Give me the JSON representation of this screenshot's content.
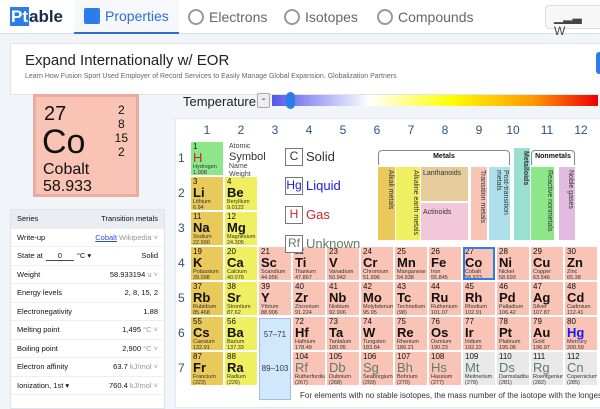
{
  "nav": {
    "logo_p": "Pt",
    "logo_rest": "able",
    "tabs": [
      {
        "label": "Properties",
        "icon": "list-icon",
        "active": true
      },
      {
        "label": "Electrons",
        "icon": "atom-icon"
      },
      {
        "label": "Isotopes",
        "icon": "isotopes-icon"
      },
      {
        "label": "Compounds",
        "icon": "compounds-icon"
      }
    ],
    "right_button": "W"
  },
  "ad": {
    "title": "Expand Internationally w/ EOR",
    "subtitle": "Learn How Fusion Sport Used Employer of Record Services to Easily Manage Global Expansion. Globalization Partners"
  },
  "selected": {
    "number": "27",
    "symbol": "Co",
    "name": "Cobalt",
    "weight": "58.933",
    "shells": [
      "2",
      "8",
      "15",
      "2"
    ]
  },
  "temperature": {
    "label": "Temperature",
    "minus": "-"
  },
  "groups": [
    "1",
    "2",
    "3",
    "4",
    "5",
    "6",
    "7",
    "8",
    "9",
    "10",
    "11",
    "12"
  ],
  "periods": [
    "1",
    "2",
    "3",
    "4",
    "5",
    "6",
    "7"
  ],
  "key": {
    "atomic": "Atomic",
    "symbol": "Symbol",
    "name": "Name",
    "weight": "Weight"
  },
  "states": [
    {
      "sym": "C",
      "label": "Solid",
      "color": "#333333"
    },
    {
      "sym": "Hg",
      "label": "Liquid",
      "color": "#1a1aee"
    },
    {
      "sym": "H",
      "label": "Gas",
      "color": "#c62828"
    },
    {
      "sym": "Rf",
      "label": "Unknown",
      "color": "#5d7d6a"
    }
  ],
  "categories": {
    "metals": "Metals",
    "nonmetals": "Nonmetals",
    "alkali": "Alkali metals",
    "alkaline": "Alkaline earth metals",
    "lanthanoids": "Lanthanoids",
    "actinoids": "Actinoids",
    "transition": "Transition metals",
    "post": "Post-transition metals",
    "metalloids": "Metalloids",
    "reactive": "Reactive nonmetals",
    "noble": "Noble gases"
  },
  "colors": {
    "alkali": "#e8c95a",
    "alkaline": "#f0ef62",
    "transition": "#f9c3b5",
    "unknown": "#e9e9e9",
    "reactive": "#8ee68a",
    "lanthanoids": "#e6cc9a",
    "actinoids": "#f2c8d8",
    "post": "#aee0ec",
    "metalloids": "#99e0d0",
    "noble": "#e2bce0"
  },
  "lanthanoid_range": "57–71",
  "actinoid_range": "89–103",
  "elements": [
    [
      "1",
      "H",
      "Hydrogen",
      "1.008",
      "reactive",
      "gas",
      1,
      1
    ],
    [
      "3",
      "Li",
      "Lithium",
      "6.94",
      "alkali",
      "solid",
      2,
      1
    ],
    [
      "4",
      "Be",
      "Beryllium",
      "9.0122",
      "alkaline",
      "solid",
      2,
      2
    ],
    [
      "11",
      "Na",
      "Sodium",
      "22.990",
      "alkali",
      "solid",
      3,
      1
    ],
    [
      "12",
      "Mg",
      "Magnesium",
      "24.305",
      "alkaline",
      "solid",
      3,
      2
    ],
    [
      "19",
      "K",
      "Potassium",
      "39.098",
      "alkali",
      "solid",
      4,
      1
    ],
    [
      "20",
      "Ca",
      "Calcium",
      "40.078",
      "alkaline",
      "solid",
      4,
      2
    ],
    [
      "21",
      "Sc",
      "Scandium",
      "44.956",
      "transition",
      "solid",
      4,
      3
    ],
    [
      "22",
      "Ti",
      "Titanium",
      "47.867",
      "transition",
      "solid",
      4,
      4
    ],
    [
      "23",
      "V",
      "Vanadium",
      "50.942",
      "transition",
      "solid",
      4,
      5
    ],
    [
      "24",
      "Cr",
      "Chromium",
      "51.996",
      "transition",
      "solid",
      4,
      6
    ],
    [
      "25",
      "Mn",
      "Manganese",
      "54.938",
      "transition",
      "solid",
      4,
      7
    ],
    [
      "26",
      "Fe",
      "Iron",
      "55.845",
      "transition",
      "solid",
      4,
      8
    ],
    [
      "27",
      "Co",
      "Cobalt",
      "58.933",
      "transition",
      "solid",
      4,
      9
    ],
    [
      "28",
      "Ni",
      "Nickel",
      "58.693",
      "transition",
      "solid",
      4,
      10
    ],
    [
      "29",
      "Cu",
      "Copper",
      "63.546",
      "transition",
      "solid",
      4,
      11
    ],
    [
      "30",
      "Zn",
      "Zinc",
      "65.38",
      "transition",
      "solid",
      4,
      12
    ],
    [
      "37",
      "Rb",
      "Rubidium",
      "85.468",
      "alkali",
      "solid",
      5,
      1
    ],
    [
      "38",
      "Sr",
      "Strontium",
      "87.62",
      "alkaline",
      "solid",
      5,
      2
    ],
    [
      "39",
      "Y",
      "Yttrium",
      "88.906",
      "transition",
      "solid",
      5,
      3
    ],
    [
      "40",
      "Zr",
      "Zirconium",
      "91.224",
      "transition",
      "solid",
      5,
      4
    ],
    [
      "41",
      "Nb",
      "Niobium",
      "92.906",
      "transition",
      "solid",
      5,
      5
    ],
    [
      "42",
      "Mo",
      "Molybdenum",
      "95.95",
      "transition",
      "solid",
      5,
      6
    ],
    [
      "43",
      "Tc",
      "Technetium",
      "(98)",
      "transition",
      "solid",
      5,
      7
    ],
    [
      "44",
      "Ru",
      "Ruthenium",
      "101.07",
      "transition",
      "solid",
      5,
      8
    ],
    [
      "45",
      "Rh",
      "Rhodium",
      "102.91",
      "transition",
      "solid",
      5,
      9
    ],
    [
      "46",
      "Pd",
      "Palladium",
      "106.42",
      "transition",
      "solid",
      5,
      10
    ],
    [
      "47",
      "Ag",
      "Silver",
      "107.87",
      "transition",
      "solid",
      5,
      11
    ],
    [
      "48",
      "Cd",
      "Cadmium",
      "112.41",
      "transition",
      "solid",
      5,
      12
    ],
    [
      "55",
      "Cs",
      "Caesium",
      "132.91",
      "alkali",
      "solid",
      6,
      1
    ],
    [
      "56",
      "Ba",
      "Barium",
      "137.33",
      "alkaline",
      "solid",
      6,
      2
    ],
    [
      "72",
      "Hf",
      "Hafnium",
      "178.49",
      "transition",
      "solid",
      6,
      4
    ],
    [
      "73",
      "Ta",
      "Tantalum",
      "180.95",
      "transition",
      "solid",
      6,
      5
    ],
    [
      "74",
      "W",
      "Tungsten",
      "183.84",
      "transition",
      "solid",
      6,
      6
    ],
    [
      "75",
      "Re",
      "Rhenium",
      "186.21",
      "transition",
      "solid",
      6,
      7
    ],
    [
      "76",
      "Os",
      "Osmium",
      "190.23",
      "transition",
      "solid",
      6,
      8
    ],
    [
      "77",
      "Ir",
      "Iridium",
      "192.22",
      "transition",
      "solid",
      6,
      9
    ],
    [
      "78",
      "Pt",
      "Platinum",
      "195.08",
      "transition",
      "solid",
      6,
      10
    ],
    [
      "79",
      "Au",
      "Gold",
      "196.97",
      "transition",
      "solid",
      6,
      11
    ],
    [
      "80",
      "Hg",
      "Mercury",
      "200.59",
      "transition",
      "liquid",
      6,
      12
    ],
    [
      "87",
      "Fr",
      "Francium",
      "(223)",
      "alkali",
      "solid",
      7,
      1
    ],
    [
      "88",
      "Ra",
      "Radium",
      "(226)",
      "alkaline",
      "solid",
      7,
      2
    ],
    [
      "104",
      "Rf",
      "Rutherfordium",
      "(267)",
      "transition",
      "unknown",
      7,
      4
    ],
    [
      "105",
      "Db",
      "Dubnium",
      "(268)",
      "transition",
      "unknown",
      7,
      5
    ],
    [
      "106",
      "Sg",
      "Seaborgium",
      "(269)",
      "transition",
      "unknown",
      7,
      6
    ],
    [
      "107",
      "Bh",
      "Bohrium",
      "(270)",
      "transition",
      "unknown",
      7,
      7
    ],
    [
      "108",
      "Hs",
      "Hassium",
      "(277)",
      "transition",
      "unknown",
      7,
      8
    ],
    [
      "109",
      "Mt",
      "Meitnerium",
      "(278)",
      "unknown",
      "unknown",
      7,
      9
    ],
    [
      "110",
      "Ds",
      "Darmstadtium",
      "(281)",
      "unknown",
      "unknown",
      7,
      10
    ],
    [
      "111",
      "Rg",
      "Roentgenium",
      "(282)",
      "unknown",
      "unknown",
      7,
      11
    ],
    [
      "112",
      "Cn",
      "Copernicium",
      "(285)",
      "unknown",
      "unknown",
      7,
      12
    ]
  ],
  "footnote": "For elements with no stable isotopes, the mass number of the isotope with the longest",
  "props": {
    "series_label": "Series",
    "series_value": "Transition metals",
    "writeup_label": "Write-up",
    "writeup_link": "Cobalt",
    "writeup_source": "Wikipedia",
    "state_label": "State at",
    "state_temp": "0",
    "state_unit": "°C",
    "state_value": "Solid",
    "weight_label": "Weight",
    "weight_value": "58.933194",
    "weight_unit": "u",
    "energy_label": "Energy levels",
    "energy_value": "2, 8, 15, 2",
    "en_label": "Electronegativity",
    "en_value": "1.88",
    "mp_label": "Melting point",
    "mp_value": "1,495",
    "mp_unit": "°C",
    "bp_label": "Boiling point",
    "bp_value": "2,900",
    "bp_unit": "°C",
    "ea_label": "Electron affinity",
    "ea_value": "63.7",
    "ea_unit": "kJ/mol",
    "ion_label": "Ionization, 1st",
    "ion_value": "760.4",
    "ion_unit": "kJ/mol"
  }
}
